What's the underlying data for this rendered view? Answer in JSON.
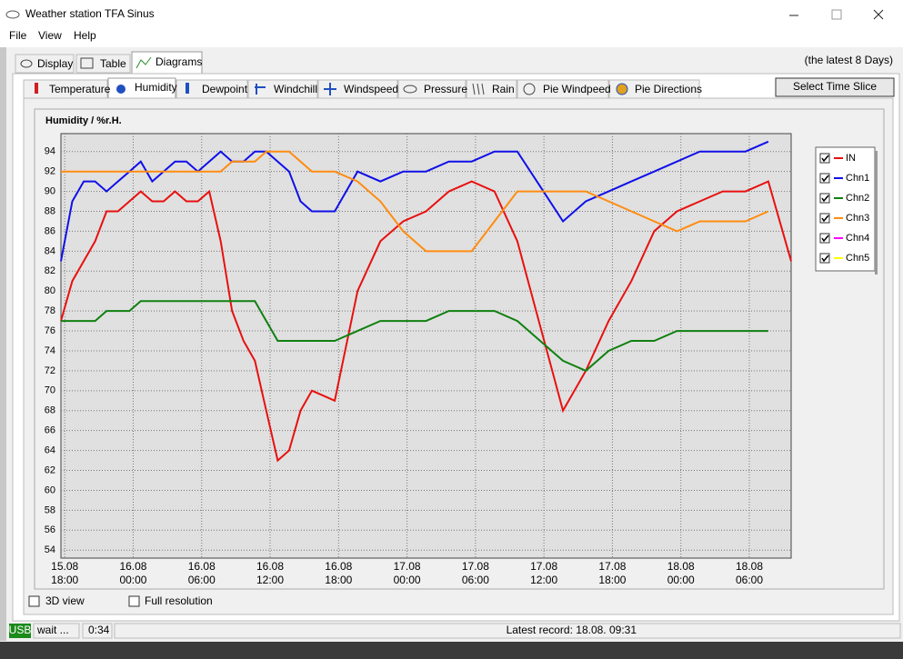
{
  "window": {
    "title": "Weather station TFA Sinus",
    "menu": [
      "File",
      "View",
      "Help"
    ],
    "tabs": [
      "Display",
      "Table",
      "Diagrams"
    ],
    "range_note": "(the latest 8 Days)",
    "subtabs": [
      "Temperature",
      "Humidity",
      "Dewpoint",
      "Windchill",
      "Windspeed",
      "Pressure",
      "Rain",
      "Pie Windpeed",
      "Pie Directions"
    ],
    "button": "Select Time Slice",
    "options": [
      "3D view",
      "Full resolution"
    ],
    "status": [
      "USB",
      "wait ...",
      "0:34",
      "Latest record: 18.08. 09:31"
    ]
  },
  "chart_data": {
    "type": "line",
    "title": "Humidity / %r.H.",
    "x": [
      "15.08 17:40",
      "15.08 18:40",
      "15.08 19:40",
      "15.08 20:40",
      "15.08 21:40",
      "15.08 22:40",
      "15.08 23:40",
      "16.08 00:40",
      "16.08 01:40",
      "16.08 02:40",
      "16.08 03:40",
      "16.08 04:40",
      "16.08 05:40",
      "16.08 06:40",
      "16.08 07:40",
      "16.08 08:40",
      "16.08 09:40",
      "16.08 10:40",
      "16.08 11:40",
      "16.08 12:40",
      "16.08 13:40",
      "16.08 14:40",
      "16.08 15:40",
      "16.08 16:40",
      "16.08 17:40",
      "16.08 19:40",
      "16.08 21:40",
      "16.08 23:40",
      "17.08 01:40",
      "17.08 03:40",
      "17.08 05:40",
      "17.08 07:40",
      "17.08 09:40",
      "17.08 11:40",
      "17.08 13:40",
      "17.08 15:40",
      "17.08 17:40",
      "17.08 19:40",
      "17.08 21:40",
      "17.08 23:40",
      "18.08 01:40",
      "18.08 03:40",
      "18.08 05:40",
      "18.08 07:40",
      "18.08 09:40"
    ],
    "xlim": [
      "15.08 17:40",
      "18.08 09:40"
    ],
    "xticks": [
      {
        "value": "15.08 18:00",
        "label": [
          "15.08",
          "18:00"
        ]
      },
      {
        "value": "16.08 00:00",
        "label": [
          "16.08",
          "00:00"
        ]
      },
      {
        "value": "16.08 06:00",
        "label": [
          "16.08",
          "06:00"
        ]
      },
      {
        "value": "16.08 12:00",
        "label": [
          "16.08",
          "12:00"
        ]
      },
      {
        "value": "16.08 18:00",
        "label": [
          "16.08",
          "18:00"
        ]
      },
      {
        "value": "17.08 00:00",
        "label": [
          "17.08",
          "00:00"
        ]
      },
      {
        "value": "17.08 06:00",
        "label": [
          "17.08",
          "06:00"
        ]
      },
      {
        "value": "17.08 12:00",
        "label": [
          "17.08",
          "12:00"
        ]
      },
      {
        "value": "17.08 18:00",
        "label": [
          "17.08",
          "18:00"
        ]
      },
      {
        "value": "18.08 00:00",
        "label": [
          "18.08",
          "00:00"
        ]
      },
      {
        "value": "18.08 06:00",
        "label": [
          "18.08",
          "06:00"
        ]
      }
    ],
    "ylim": [
      53.2,
      95.8
    ],
    "yticks": [
      54,
      56,
      58,
      60,
      62,
      64,
      66,
      68,
      70,
      72,
      74,
      76,
      78,
      80,
      82,
      84,
      86,
      88,
      90,
      92,
      94
    ],
    "grid": true,
    "legend": "right",
    "series": [
      {
        "name": "IN",
        "color": "#e81010",
        "values": [
          77,
          81,
          83,
          85,
          88,
          88,
          89,
          90,
          89,
          89,
          90,
          89,
          89,
          90,
          85,
          78,
          75,
          73,
          68,
          63,
          64,
          68,
          70,
          69.5,
          69,
          80,
          85,
          87,
          88,
          90,
          91,
          90,
          85,
          76.5,
          68,
          72,
          77,
          81,
          86,
          88,
          89,
          90,
          90,
          91,
          83
        ]
      },
      {
        "name": "Chn1",
        "color": "#1010e8",
        "values": [
          83,
          89,
          91,
          91,
          90,
          91,
          92,
          93,
          91,
          92,
          93,
          93,
          92,
          93,
          94,
          93,
          93,
          94,
          94,
          93,
          92,
          89,
          88,
          88,
          88,
          92,
          91,
          92,
          92,
          93,
          93,
          94,
          94,
          90.5,
          87,
          89,
          90,
          91,
          92,
          93,
          94,
          94,
          94,
          95,
          null
        ]
      },
      {
        "name": "Chn2",
        "color": "#108010",
        "values": [
          77,
          77,
          77,
          77,
          78,
          78,
          78,
          79,
          79,
          79,
          79,
          79,
          79,
          79,
          79,
          79,
          79,
          79,
          77,
          75,
          75,
          75,
          75,
          75,
          75,
          76,
          77,
          77,
          77,
          78,
          78,
          78,
          77,
          75,
          73,
          72,
          74,
          75,
          75,
          76,
          76,
          76,
          76,
          76,
          null
        ]
      },
      {
        "name": "Chn3",
        "color": "#ff8c10",
        "values": [
          92,
          92,
          92,
          92,
          92,
          92,
          92,
          92,
          92,
          92,
          92,
          92,
          92,
          92,
          92,
          93,
          93,
          93,
          94,
          94,
          94,
          93,
          92,
          92,
          92,
          91,
          89,
          86,
          84,
          84,
          84,
          87,
          90,
          90,
          90,
          90,
          89,
          88,
          87,
          86,
          87,
          87,
          87,
          88,
          null
        ]
      },
      {
        "name": "Chn4",
        "color": "#ff00ff",
        "values": [
          null,
          null,
          null,
          null,
          null,
          null,
          null,
          null,
          null,
          null,
          null,
          null,
          null,
          null,
          null,
          null,
          null,
          null,
          null,
          null,
          null,
          null,
          null,
          null,
          null,
          null,
          null,
          null,
          null,
          null,
          null,
          null,
          null,
          null,
          null,
          null,
          null,
          null,
          null,
          null,
          null,
          null,
          null,
          null,
          null
        ]
      },
      {
        "name": "Chn5",
        "color": "#ffff00",
        "values": [
          null,
          null,
          null,
          null,
          null,
          null,
          null,
          null,
          null,
          null,
          null,
          null,
          null,
          null,
          null,
          null,
          null,
          null,
          null,
          null,
          null,
          null,
          null,
          null,
          null,
          null,
          null,
          null,
          null,
          null,
          null,
          null,
          null,
          null,
          null,
          null,
          null,
          null,
          null,
          null,
          null,
          null,
          null,
          null,
          null
        ]
      }
    ]
  }
}
